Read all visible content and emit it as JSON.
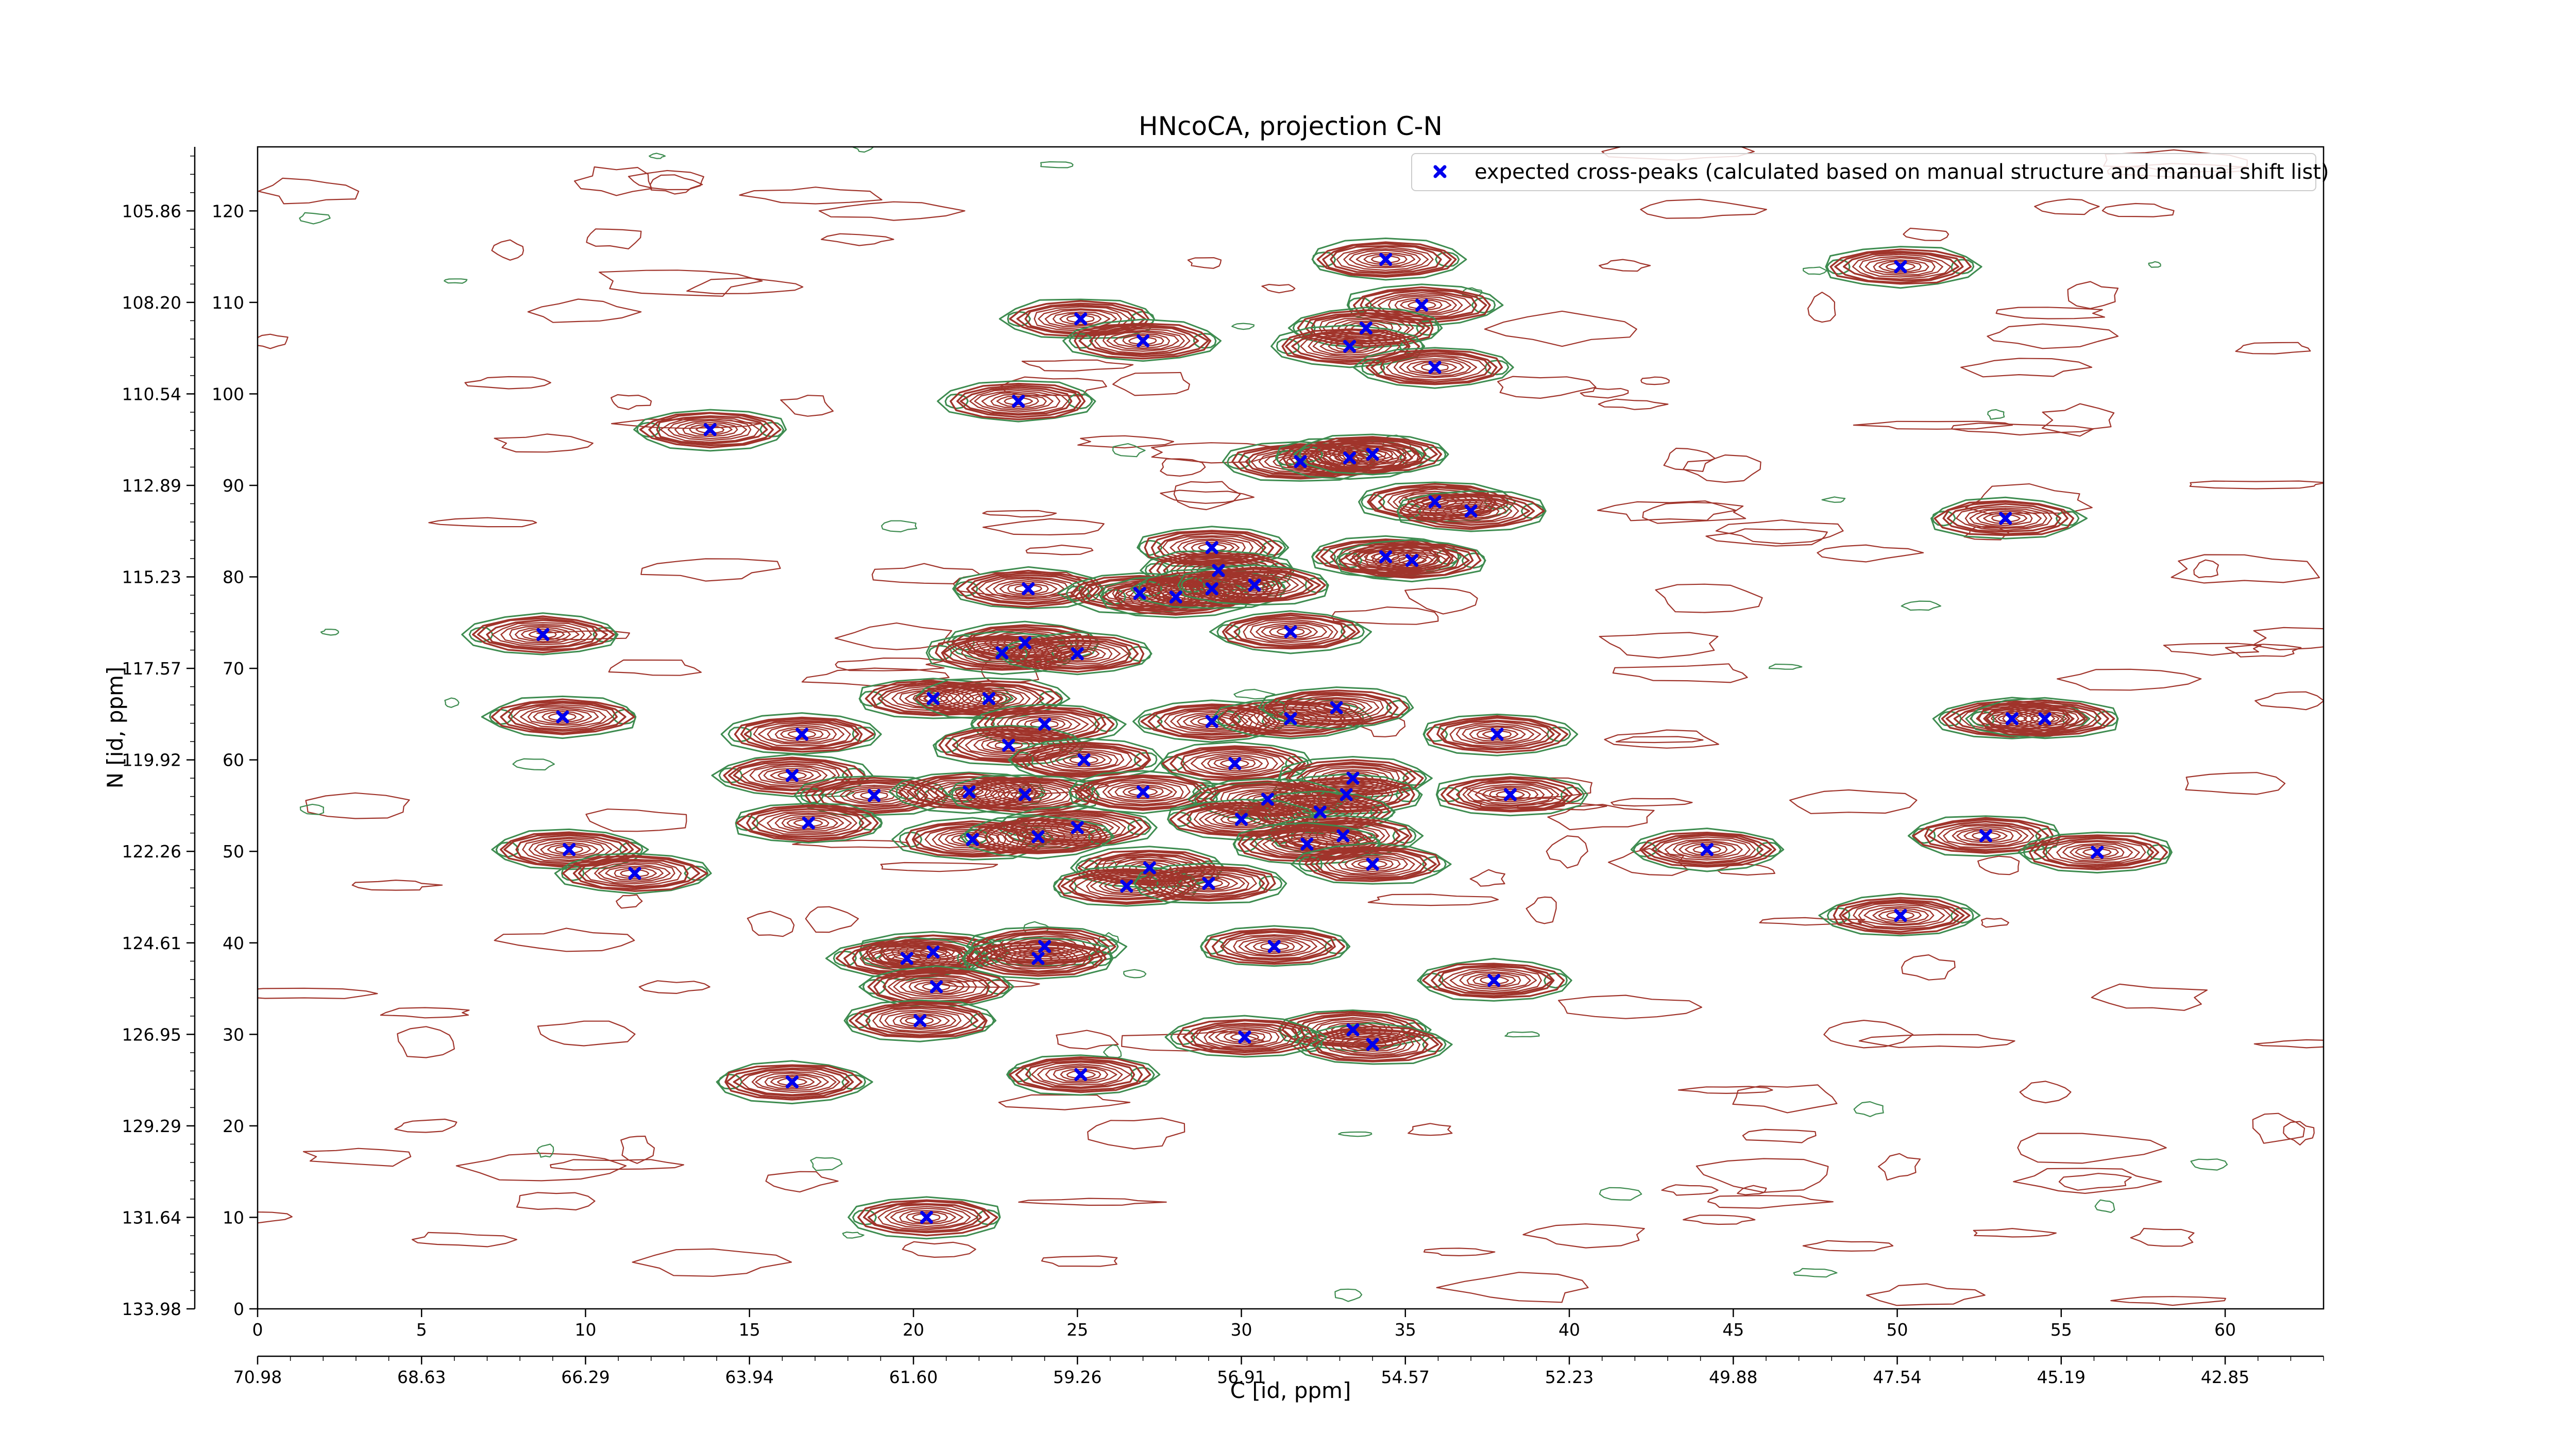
{
  "chart_data": {
    "type": "contour",
    "title": "HNcoCA, projection C-N",
    "xlabel": "C [id, ppm]",
    "ylabel": "N [id, ppm]",
    "xlim": [
      0,
      63
    ],
    "ylim": [
      0,
      127
    ],
    "x_ticks": [
      0,
      5,
      10,
      15,
      20,
      25,
      30,
      35,
      40,
      45,
      50,
      55,
      60
    ],
    "y_ticks": [
      0,
      10,
      20,
      30,
      40,
      50,
      60,
      70,
      80,
      90,
      100,
      110,
      120
    ],
    "x_ppm_ticks": [
      {
        "x": 0,
        "label": "70.98"
      },
      {
        "x": 5,
        "label": "68.63"
      },
      {
        "x": 10,
        "label": "66.29"
      },
      {
        "x": 15,
        "label": "63.94"
      },
      {
        "x": 20,
        "label": "61.60"
      },
      {
        "x": 25,
        "label": "59.26"
      },
      {
        "x": 30,
        "label": "56.91"
      },
      {
        "x": 35,
        "label": "54.57"
      },
      {
        "x": 40,
        "label": "52.23"
      },
      {
        "x": 45,
        "label": "49.88"
      },
      {
        "x": 50,
        "label": "47.54"
      },
      {
        "x": 55,
        "label": "45.19"
      },
      {
        "x": 60,
        "label": "42.85"
      }
    ],
    "y_ppm_ticks": [
      {
        "y": 120,
        "label": "105.86"
      },
      {
        "y": 110,
        "label": "108.20"
      },
      {
        "y": 100,
        "label": "110.54"
      },
      {
        "y": 90,
        "label": "112.89"
      },
      {
        "y": 80,
        "label": "115.23"
      },
      {
        "y": 70,
        "label": "117.57"
      },
      {
        "y": 60,
        "label": "119.92"
      },
      {
        "y": 50,
        "label": "122.26"
      },
      {
        "y": 40,
        "label": "124.61"
      },
      {
        "y": 30,
        "label": "126.95"
      },
      {
        "y": 20,
        "label": "129.29"
      },
      {
        "y": 10,
        "label": "131.64"
      },
      {
        "y": 0,
        "label": "133.98"
      }
    ],
    "grid": false,
    "legend": {
      "position": "top-right",
      "entries": [
        "expected cross-peaks (calculated based on manual structure and manual shift list)"
      ]
    },
    "colors": {
      "positive_contour": "#a0342b",
      "negative_contour": "#3e8c50",
      "marker": "#0000ee"
    },
    "series": [
      {
        "name": "expected cross-peaks (calculated based on manual structure and manual shift list)",
        "marker": "x",
        "points": [
          [
            34.4,
            114.7
          ],
          [
            50.1,
            113.9
          ],
          [
            25.1,
            108.2
          ],
          [
            27.0,
            105.8
          ],
          [
            35.5,
            109.7
          ],
          [
            33.8,
            107.2
          ],
          [
            33.3,
            105.2
          ],
          [
            35.9,
            102.9
          ],
          [
            23.2,
            99.2
          ],
          [
            13.8,
            96.1
          ],
          [
            31.8,
            92.6
          ],
          [
            33.3,
            93.0
          ],
          [
            34.0,
            93.4
          ],
          [
            35.9,
            88.2
          ],
          [
            37.0,
            87.2
          ],
          [
            53.3,
            86.4
          ],
          [
            29.1,
            83.2
          ],
          [
            29.3,
            80.7
          ],
          [
            34.4,
            82.2
          ],
          [
            35.2,
            81.8
          ],
          [
            23.5,
            78.7
          ],
          [
            26.9,
            78.2
          ],
          [
            28.0,
            77.8
          ],
          [
            29.1,
            78.7
          ],
          [
            30.4,
            79.1
          ],
          [
            8.7,
            73.7
          ],
          [
            23.4,
            72.8
          ],
          [
            22.7,
            71.7
          ],
          [
            25.0,
            71.6
          ],
          [
            31.5,
            74.0
          ],
          [
            20.6,
            66.7
          ],
          [
            22.3,
            66.7
          ],
          [
            9.3,
            64.7
          ],
          [
            16.6,
            62.8
          ],
          [
            24.0,
            63.9
          ],
          [
            29.1,
            64.2
          ],
          [
            31.5,
            64.5
          ],
          [
            32.9,
            65.7
          ],
          [
            37.8,
            62.8
          ],
          [
            53.5,
            64.5
          ],
          [
            54.5,
            64.5
          ],
          [
            22.9,
            61.6
          ],
          [
            16.3,
            58.3
          ],
          [
            25.2,
            60.0
          ],
          [
            29.8,
            59.6
          ],
          [
            33.4,
            58.0
          ],
          [
            18.8,
            56.1
          ],
          [
            21.7,
            56.5
          ],
          [
            23.4,
            56.2
          ],
          [
            27.0,
            56.5
          ],
          [
            33.2,
            56.2
          ],
          [
            38.2,
            56.2
          ],
          [
            16.8,
            53.1
          ],
          [
            30.8,
            55.7
          ],
          [
            32.4,
            54.3
          ],
          [
            30.0,
            53.5
          ],
          [
            25.0,
            52.6
          ],
          [
            33.1,
            51.7
          ],
          [
            21.8,
            51.3
          ],
          [
            23.8,
            51.6
          ],
          [
            32.0,
            50.8
          ],
          [
            9.5,
            50.2
          ],
          [
            11.5,
            47.6
          ],
          [
            44.2,
            50.2
          ],
          [
            52.7,
            51.7
          ],
          [
            56.1,
            49.9
          ],
          [
            27.2,
            48.2
          ],
          [
            34.0,
            48.6
          ],
          [
            26.5,
            46.2
          ],
          [
            29.0,
            46.5
          ],
          [
            50.1,
            43.0
          ],
          [
            31.0,
            39.6
          ],
          [
            20.6,
            39.0
          ],
          [
            19.8,
            38.3
          ],
          [
            24.0,
            39.6
          ],
          [
            23.8,
            38.3
          ],
          [
            20.7,
            35.2
          ],
          [
            37.7,
            35.9
          ],
          [
            20.2,
            31.5
          ],
          [
            33.4,
            30.5
          ],
          [
            34.0,
            28.9
          ],
          [
            30.1,
            29.7
          ],
          [
            25.1,
            25.6
          ],
          [
            16.3,
            24.8
          ],
          [
            20.4,
            10.0
          ]
        ]
      }
    ]
  }
}
